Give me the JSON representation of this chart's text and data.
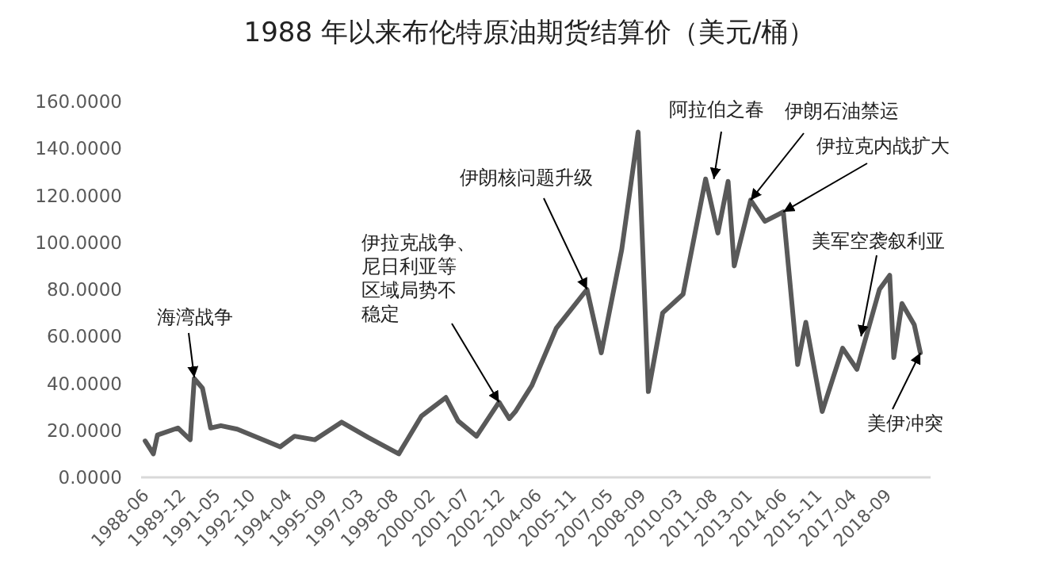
{
  "chart_data": {
    "type": "line",
    "title": "1988 年以来布伦特原油期货结算价（美元/桶）",
    "x": [
      "1988-06",
      "1988-10",
      "1988-12",
      "1989-10",
      "1990-04",
      "1990-06",
      "1990-10",
      "1991-02",
      "1991-07",
      "1992-03",
      "1993-12",
      "1994-07",
      "1995-05",
      "1996-06",
      "1997-07",
      "1998-10",
      "1999-09",
      "2000-09",
      "2001-03",
      "2001-12",
      "2002-11",
      "2003-04",
      "2003-07",
      "2004-03",
      "2005-03",
      "2006-06",
      "2007-01",
      "2007-11",
      "2008-07",
      "2008-12",
      "2009-07",
      "2010-05",
      "2011-04",
      "2011-10",
      "2012-03",
      "2012-06",
      "2013-02",
      "2013-09",
      "2014-06",
      "2015-01",
      "2015-05",
      "2016-01",
      "2016-11",
      "2017-06",
      "2018-05",
      "2018-10",
      "2018-12",
      "2019-04",
      "2019-10",
      "2020-01"
    ],
    "series": [
      {
        "color": "#595959",
        "values": [
          15.5,
          10,
          18,
          21,
          16,
          42,
          38,
          21,
          22,
          20.5,
          13,
          17.5,
          16,
          23.5,
          17,
          10,
          26,
          34,
          24,
          17.5,
          32,
          25,
          28,
          39,
          63.5,
          80,
          53,
          97,
          147,
          36.5,
          70,
          78,
          127,
          104,
          126,
          90,
          118,
          109,
          113,
          48,
          66,
          28,
          55,
          46,
          80,
          86,
          51,
          74,
          65,
          53
        ]
      }
    ],
    "xlim": [
      "1988-04",
      "2020-06"
    ],
    "xticks": [
      "1988-06",
      "1989-12",
      "1991-05",
      "1992-10",
      "1994-04",
      "1995-09",
      "1997-03",
      "1998-08",
      "2000-02",
      "2001-07",
      "2002-12",
      "2004-06",
      "2005-11",
      "2007-05",
      "2008-09",
      "2010-03",
      "2011-08",
      "2013-01",
      "2014-06",
      "2015-11",
      "2017-04",
      "2018-09"
    ],
    "ylim": [
      0,
      160
    ],
    "yticks": [
      {
        "value": 0,
        "label": "0.0000"
      },
      {
        "value": 20,
        "label": "20.0000"
      },
      {
        "value": 40,
        "label": "40.0000"
      },
      {
        "value": 60,
        "label": "60.0000"
      },
      {
        "value": 80,
        "label": "80.0000"
      },
      {
        "value": 100,
        "label": "100.0000"
      },
      {
        "value": 120,
        "label": "120.0000"
      },
      {
        "value": 140,
        "label": "140.0000"
      },
      {
        "value": 160,
        "label": "160.0000"
      }
    ],
    "grid": false,
    "marker": "none",
    "line_style": "solid",
    "annotations": [
      {
        "text": "海湾战争",
        "x": "1990-06",
        "y": 42.5
      },
      {
        "text": "伊拉克战争、尼日利亚等区域局势不稳定",
        "x": "2002-11",
        "y": 32
      },
      {
        "text": "伊朗核问题升级",
        "x": "2006-06",
        "y": 80
      },
      {
        "text": "阿拉伯之春",
        "x": "2011-08",
        "y": 127
      },
      {
        "text": "伊朗石油禁运",
        "x": "2013-02",
        "y": 118
      },
      {
        "text": "伊拉克内战扩大",
        "x": "2014-06",
        "y": 113
      },
      {
        "text": "美军空袭叙利亚",
        "x": "2017-08",
        "y": 60
      },
      {
        "text": "美伊冲突",
        "x": "2020-01",
        "y": 53
      }
    ]
  }
}
